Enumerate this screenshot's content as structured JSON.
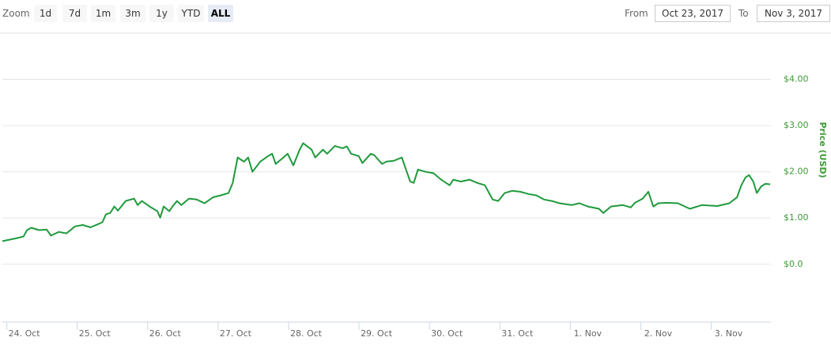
{
  "toolbar": {
    "zoom_label": "Zoom",
    "buttons": [
      "1d",
      "7d",
      "1m",
      "3m",
      "1y",
      "YTD",
      "ALL"
    ],
    "selected_button": "ALL",
    "from_label": "From",
    "from_date": "Oct 23, 2017",
    "to_label": "To",
    "to_date": "Nov 3, 2017"
  },
  "chart_data": {
    "type": "line",
    "y_axis_label": "Price (USD)",
    "x": [
      0.69,
      0.88,
      0.99,
      1.04,
      1.1,
      1.21,
      1.32,
      1.38,
      1.49,
      1.6,
      1.72,
      1.83,
      1.94,
      2.05,
      2.11,
      2.16,
      2.22,
      2.28,
      2.33,
      2.44,
      2.56,
      2.61,
      2.67,
      2.78,
      2.89,
      2.93,
      2.98,
      3.06,
      3.12,
      3.17,
      3.23,
      3.34,
      3.45,
      3.56,
      3.68,
      3.79,
      3.9,
      3.96,
      4.03,
      4.12,
      4.18,
      4.24,
      4.35,
      4.46,
      4.52,
      4.57,
      4.68,
      4.74,
      4.82,
      4.91,
      4.96,
      5.08,
      5.13,
      5.24,
      5.3,
      5.41,
      5.52,
      5.58,
      5.64,
      5.75,
      5.8,
      5.92,
      5.97,
      6.08,
      6.14,
      6.25,
      6.36,
      6.42,
      6.48,
      6.53,
      6.59,
      6.7,
      6.81,
      6.92,
      7.04,
      7.09,
      7.2,
      7.32,
      7.43,
      7.54,
      7.6,
      7.65,
      7.73,
      7.82,
      7.93,
      8.04,
      8.16,
      8.27,
      8.38,
      8.49,
      8.6,
      8.77,
      8.88,
      9.0,
      9.16,
      9.22,
      9.33,
      9.5,
      9.61,
      9.67,
      9.78,
      9.86,
      9.93,
      10.0,
      10.12,
      10.28,
      10.45,
      10.62,
      10.84,
      11.01,
      11.12,
      11.18,
      11.24,
      11.29,
      11.35,
      11.4,
      11.46,
      11.52,
      11.59
    ],
    "series": [
      {
        "color": "#1f9a3c",
        "values": [
          0.5,
          0.56,
          0.6,
          0.74,
          0.79,
          0.74,
          0.75,
          0.62,
          0.7,
          0.67,
          0.82,
          0.85,
          0.8,
          0.87,
          0.91,
          1.08,
          1.11,
          1.25,
          1.16,
          1.37,
          1.42,
          1.28,
          1.37,
          1.25,
          1.15,
          1.01,
          1.25,
          1.15,
          1.28,
          1.37,
          1.28,
          1.42,
          1.4,
          1.32,
          1.45,
          1.49,
          1.54,
          1.76,
          2.31,
          2.22,
          2.31,
          2.0,
          2.22,
          2.34,
          2.39,
          2.17,
          2.31,
          2.39,
          2.14,
          2.48,
          2.62,
          2.48,
          2.31,
          2.48,
          2.39,
          2.56,
          2.51,
          2.55,
          2.39,
          2.34,
          2.19,
          2.39,
          2.36,
          2.17,
          2.22,
          2.24,
          2.31,
          2.05,
          1.79,
          1.76,
          2.05,
          2.0,
          1.97,
          1.83,
          1.71,
          1.83,
          1.79,
          1.83,
          1.76,
          1.71,
          1.54,
          1.4,
          1.37,
          1.54,
          1.59,
          1.57,
          1.52,
          1.49,
          1.4,
          1.37,
          1.32,
          1.28,
          1.32,
          1.25,
          1.2,
          1.11,
          1.25,
          1.28,
          1.23,
          1.33,
          1.42,
          1.57,
          1.25,
          1.32,
          1.33,
          1.32,
          1.2,
          1.28,
          1.26,
          1.32,
          1.45,
          1.71,
          1.88,
          1.93,
          1.79,
          1.54,
          1.68,
          1.74,
          1.73
        ]
      }
    ],
    "xlim": [
      0.69,
      11.6
    ],
    "xticks": [
      {
        "value": 1,
        "label": "24. Oct"
      },
      {
        "value": 2,
        "label": "25. Oct"
      },
      {
        "value": 3,
        "label": "26. Oct"
      },
      {
        "value": 4,
        "label": "27. Oct"
      },
      {
        "value": 5,
        "label": "28. Oct"
      },
      {
        "value": 6,
        "label": "29. Oct"
      },
      {
        "value": 7,
        "label": "30. Oct"
      },
      {
        "value": 8,
        "label": "31. Oct"
      },
      {
        "value": 9,
        "label": "1. Nov"
      },
      {
        "value": 10,
        "label": "2. Nov"
      },
      {
        "value": 11,
        "label": "3. Nov"
      }
    ],
    "ylim": [
      -1.25,
      5
    ],
    "yticks": [
      {
        "value": 0,
        "label": "$0.0"
      },
      {
        "value": 1,
        "label": "$1.00"
      },
      {
        "value": 2,
        "label": "$2.00"
      },
      {
        "value": 3,
        "label": "$3.00"
      },
      {
        "value": 4,
        "label": "$4.00"
      }
    ],
    "grid": true,
    "axis_color": "#3d9b35"
  }
}
